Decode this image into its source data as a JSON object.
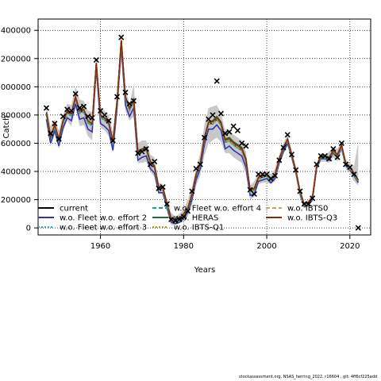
{
  "chart_data": {
    "type": "line",
    "title": "",
    "xlabel": "Years",
    "ylabel": "Catch",
    "xlim": [
      1945,
      2025
    ],
    "ylim": [
      -50000,
      1480000
    ],
    "x_ticks": [
      1960,
      1980,
      2000,
      2020
    ],
    "y_ticks": [
      0,
      200000,
      400000,
      600000,
      800000,
      1000000,
      1200000,
      1400000
    ],
    "grid": true,
    "legend_position": "bottom-left",
    "years": [
      1947,
      1948,
      1949,
      1950,
      1951,
      1952,
      1953,
      1954,
      1955,
      1956,
      1957,
      1958,
      1959,
      1960,
      1961,
      1962,
      1963,
      1964,
      1965,
      1966,
      1967,
      1968,
      1969,
      1970,
      1971,
      1972,
      1973,
      1974,
      1975,
      1976,
      1977,
      1978,
      1979,
      1980,
      1981,
      1982,
      1983,
      1984,
      1985,
      1986,
      1987,
      1988,
      1989,
      1990,
      1991,
      1992,
      1993,
      1994,
      1995,
      1996,
      1997,
      1998,
      1999,
      2000,
      2001,
      2002,
      2003,
      2004,
      2005,
      2006,
      2007,
      2008,
      2009,
      2010,
      2011,
      2012,
      2013,
      2014,
      2015,
      2016,
      2017,
      2018,
      2019,
      2020,
      2021,
      2022
    ],
    "observed": [
      850000,
      670000,
      740000,
      630000,
      790000,
      840000,
      830000,
      950000,
      850000,
      860000,
      790000,
      780000,
      1190000,
      830000,
      800000,
      760000,
      620000,
      930000,
      1350000,
      960000,
      880000,
      900000,
      530000,
      540000,
      560000,
      450000,
      470000,
      280000,
      290000,
      170000,
      60000,
      50000,
      60000,
      80000,
      120000,
      260000,
      420000,
      450000,
      640000,
      770000,
      800000,
      1040000,
      810000,
      670000,
      680000,
      720000,
      690000,
      600000,
      580000,
      270000,
      240000,
      380000,
      380000,
      380000,
      350000,
      370000,
      480000,
      570000,
      660000,
      520000,
      410000,
      260000,
      170000,
      170000,
      210000,
      450000,
      510000,
      510000,
      490000,
      560000,
      500000,
      600000,
      450000,
      430000,
      380000,
      0
    ],
    "band_upper": [
      860000,
      720000,
      770000,
      690000,
      800000,
      880000,
      870000,
      1000000,
      910000,
      900000,
      830000,
      820000,
      1200000,
      850000,
      830000,
      800000,
      680000,
      960000,
      1410000,
      980000,
      880000,
      1020000,
      600000,
      620000,
      620000,
      520000,
      500000,
      320000,
      310000,
      200000,
      110000,
      80000,
      100000,
      130000,
      200000,
      290000,
      420000,
      530000,
      730000,
      850000,
      860000,
      870000,
      810000,
      690000,
      690000,
      660000,
      640000,
      620000,
      540000,
      300000,
      330000,
      390000,
      400000,
      400000,
      380000,
      420000,
      520000,
      600000,
      660000,
      550000,
      430000,
      280000,
      180000,
      200000,
      240000,
      460000,
      530000,
      520000,
      540000,
      570000,
      560000,
      610000,
      480000,
      460000,
      440000,
      610000
    ],
    "band_lower": [
      740000,
      580000,
      660000,
      560000,
      680000,
      760000,
      720000,
      850000,
      720000,
      730000,
      650000,
      620000,
      1090000,
      710000,
      690000,
      650000,
      530000,
      820000,
      1210000,
      830000,
      760000,
      790000,
      460000,
      460000,
      470000,
      400000,
      360000,
      240000,
      240000,
      120000,
      20000,
      20000,
      30000,
      50000,
      80000,
      160000,
      300000,
      370000,
      510000,
      600000,
      620000,
      640000,
      610000,
      530000,
      530000,
      500000,
      480000,
      460000,
      380000,
      200000,
      220000,
      310000,
      320000,
      320000,
      310000,
      330000,
      440000,
      520000,
      580000,
      480000,
      370000,
      210000,
      140000,
      150000,
      190000,
      410000,
      470000,
      470000,
      460000,
      500000,
      470000,
      540000,
      420000,
      390000,
      330000,
      300000
    ],
    "series": [
      {
        "name": "current",
        "color": "#000000",
        "dash": "solid",
        "values": [
          810000,
          640000,
          720000,
          620000,
          750000,
          820000,
          800000,
          920000,
          820000,
          830000,
          750000,
          730000,
          1160000,
          790000,
          770000,
          740000,
          600000,
          890000,
          1320000,
          920000,
          840000,
          900000,
          530000,
          550000,
          560000,
          460000,
          430000,
          280000,
          280000,
          160000,
          60000,
          50000,
          60000,
          90000,
          130000,
          230000,
          370000,
          450000,
          630000,
          740000,
          740000,
          770000,
          730000,
          610000,
          620000,
          590000,
          570000,
          550000,
          470000,
          260000,
          270000,
          350000,
          360000,
          370000,
          340000,
          370000,
          480000,
          560000,
          620000,
          510000,
          400000,
          250000,
          160000,
          170000,
          210000,
          430000,
          500000,
          500000,
          490000,
          540000,
          510000,
          580000,
          450000,
          420000,
          380000,
          330000
        ]
      },
      {
        "name": "w.o. Fleet w.o. effort 2",
        "color": "#3333aa",
        "dash": "solid",
        "values": [
          770000,
          600000,
          690000,
          580000,
          710000,
          780000,
          760000,
          880000,
          770000,
          780000,
          700000,
          680000,
          1130000,
          740000,
          720000,
          690000,
          550000,
          850000,
          1280000,
          870000,
          790000,
          850000,
          480000,
          500000,
          510000,
          420000,
          390000,
          250000,
          250000,
          140000,
          40000,
          30000,
          40000,
          70000,
          110000,
          200000,
          340000,
          420000,
          590000,
          700000,
          700000,
          730000,
          690000,
          560000,
          580000,
          550000,
          530000,
          510000,
          430000,
          230000,
          240000,
          330000,
          340000,
          350000,
          320000,
          350000,
          460000,
          540000,
          600000,
          500000,
          390000,
          240000,
          150000,
          160000,
          200000,
          420000,
          490000,
          490000,
          480000,
          530000,
          500000,
          570000,
          440000,
          410000,
          370000,
          320000
        ]
      },
      {
        "name": "w.o. Fleet w.o. effort 3",
        "color": "#2aa8c8",
        "dash": "dotted",
        "values": [
          800000,
          630000,
          710000,
          610000,
          740000,
          810000,
          790000,
          910000,
          810000,
          820000,
          740000,
          720000,
          1150000,
          780000,
          760000,
          730000,
          590000,
          880000,
          1310000,
          910000,
          830000,
          890000,
          520000,
          540000,
          550000,
          450000,
          420000,
          270000,
          270000,
          155000,
          55000,
          45000,
          55000,
          85000,
          125000,
          225000,
          365000,
          445000,
          625000,
          735000,
          735000,
          765000,
          725000,
          605000,
          615000,
          585000,
          565000,
          545000,
          465000,
          255000,
          265000,
          345000,
          355000,
          365000,
          335000,
          365000,
          475000,
          555000,
          615000,
          505000,
          395000,
          245000,
          155000,
          165000,
          205000,
          425000,
          495000,
          495000,
          485000,
          535000,
          505000,
          575000,
          445000,
          415000,
          375000,
          325000
        ]
      },
      {
        "name": "w.o. Fleet w.o. effort 4",
        "color": "#1aa090",
        "dash": "dashed",
        "values": [
          805000,
          635000,
          715000,
          615000,
          745000,
          815000,
          795000,
          915000,
          815000,
          825000,
          745000,
          725000,
          1155000,
          785000,
          765000,
          735000,
          595000,
          885000,
          1315000,
          915000,
          835000,
          895000,
          525000,
          545000,
          555000,
          455000,
          425000,
          275000,
          275000,
          158000,
          58000,
          48000,
          58000,
          88000,
          128000,
          228000,
          368000,
          448000,
          628000,
          738000,
          738000,
          768000,
          728000,
          608000,
          618000,
          588000,
          568000,
          548000,
          468000,
          258000,
          268000,
          348000,
          358000,
          368000,
          338000,
          368000,
          478000,
          558000,
          618000,
          508000,
          398000,
          248000,
          158000,
          168000,
          208000,
          428000,
          498000,
          498000,
          488000,
          538000,
          508000,
          578000,
          448000,
          418000,
          378000,
          328000
        ]
      },
      {
        "name": "w.o. HERAS",
        "color": "#1f6b3a",
        "dash": "solid",
        "values": [
          820000,
          650000,
          730000,
          630000,
          760000,
          830000,
          810000,
          930000,
          830000,
          840000,
          760000,
          740000,
          1170000,
          800000,
          780000,
          750000,
          610000,
          900000,
          1330000,
          930000,
          850000,
          910000,
          540000,
          560000,
          570000,
          470000,
          440000,
          290000,
          290000,
          170000,
          70000,
          60000,
          70000,
          100000,
          140000,
          240000,
          380000,
          460000,
          640000,
          750000,
          760000,
          790000,
          750000,
          630000,
          640000,
          610000,
          590000,
          570000,
          490000,
          270000,
          280000,
          360000,
          370000,
          380000,
          350000,
          380000,
          490000,
          570000,
          630000,
          520000,
          410000,
          260000,
          170000,
          180000,
          220000,
          440000,
          510000,
          510000,
          500000,
          550000,
          520000,
          590000,
          460000,
          430000,
          390000,
          340000
        ]
      },
      {
        "name": "w.o. IBTS-Q1",
        "color": "#b8a000",
        "dash": "dotted",
        "values": [
          812000,
          642000,
          722000,
          622000,
          752000,
          822000,
          802000,
          922000,
          822000,
          832000,
          752000,
          732000,
          1162000,
          792000,
          772000,
          742000,
          602000,
          892000,
          1322000,
          922000,
          842000,
          902000,
          532000,
          552000,
          562000,
          462000,
          432000,
          282000,
          282000,
          162000,
          62000,
          52000,
          62000,
          92000,
          132000,
          232000,
          372000,
          452000,
          632000,
          742000,
          742000,
          772000,
          732000,
          612000,
          622000,
          592000,
          572000,
          552000,
          472000,
          262000,
          272000,
          352000,
          362000,
          372000,
          342000,
          372000,
          482000,
          562000,
          622000,
          512000,
          402000,
          252000,
          162000,
          172000,
          212000,
          432000,
          502000,
          502000,
          492000,
          542000,
          512000,
          582000,
          452000,
          422000,
          382000,
          332000
        ]
      },
      {
        "name": "w.o. IBTS0",
        "color": "#c8a060",
        "dash": "dashed",
        "values": [
          814000,
          644000,
          724000,
          624000,
          754000,
          824000,
          804000,
          924000,
          824000,
          834000,
          754000,
          734000,
          1164000,
          794000,
          774000,
          744000,
          604000,
          894000,
          1324000,
          924000,
          844000,
          904000,
          534000,
          554000,
          564000,
          464000,
          434000,
          284000,
          284000,
          164000,
          64000,
          54000,
          64000,
          94000,
          134000,
          234000,
          374000,
          454000,
          634000,
          744000,
          744000,
          774000,
          734000,
          614000,
          624000,
          594000,
          574000,
          554000,
          474000,
          264000,
          274000,
          354000,
          364000,
          374000,
          344000,
          374000,
          484000,
          564000,
          624000,
          514000,
          404000,
          254000,
          164000,
          174000,
          214000,
          434000,
          504000,
          504000,
          494000,
          544000,
          514000,
          584000,
          454000,
          424000,
          384000,
          334000
        ]
      },
      {
        "name": "w.o. IBTS-Q3",
        "color": "#8b2a0a",
        "dash": "solid",
        "values": [
          818000,
          648000,
          728000,
          628000,
          758000,
          828000,
          808000,
          928000,
          828000,
          838000,
          758000,
          738000,
          1168000,
          798000,
          778000,
          748000,
          608000,
          898000,
          1328000,
          928000,
          848000,
          908000,
          538000,
          558000,
          568000,
          468000,
          438000,
          288000,
          288000,
          168000,
          68000,
          58000,
          68000,
          98000,
          138000,
          238000,
          378000,
          458000,
          638000,
          748000,
          752000,
          782000,
          742000,
          622000,
          632000,
          602000,
          582000,
          562000,
          482000,
          268000,
          278000,
          358000,
          368000,
          378000,
          348000,
          378000,
          488000,
          568000,
          628000,
          518000,
          408000,
          258000,
          168000,
          178000,
          218000,
          438000,
          508000,
          508000,
          498000,
          548000,
          518000,
          588000,
          458000,
          428000,
          388000,
          338000
        ]
      }
    ]
  },
  "footnote": "stockassessment.org, NSAS_herring_2022, r16604 , git: 4ff6cf225add"
}
